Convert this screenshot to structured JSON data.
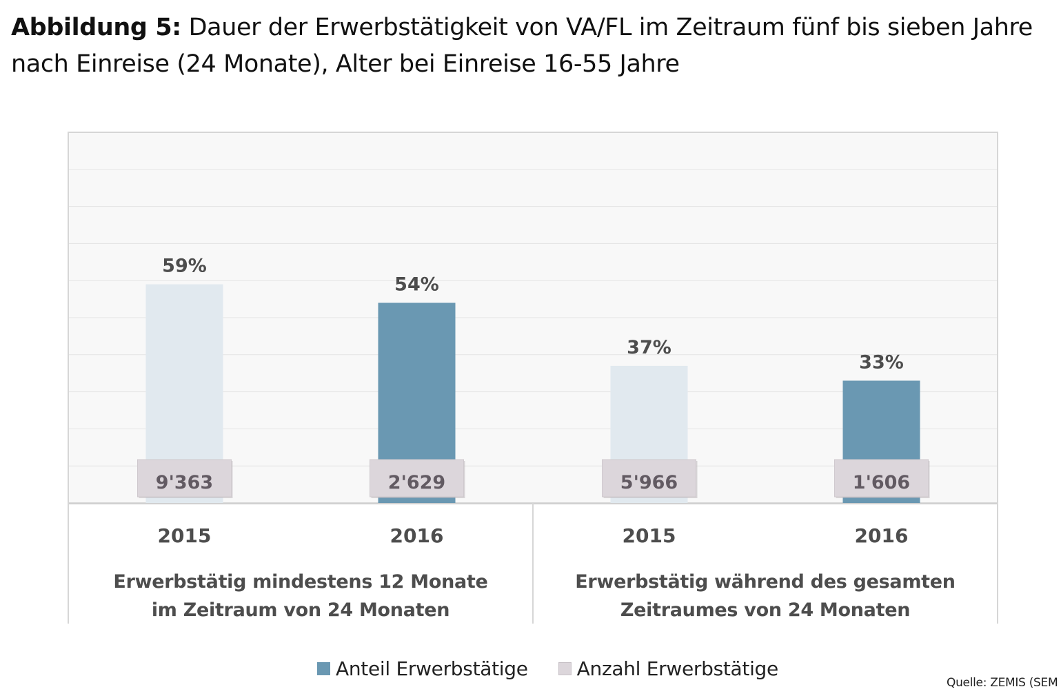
{
  "title": {
    "prefix": "Abbildung 5:",
    "text": " Dauer der Erwerbstätigkeit von VA/FL im Zeitraum fünf bis sieben Jahre nach Einreise (24 Monate), Alter bei Einreise 16-55 Jahre"
  },
  "colors": {
    "anteil": "#6a98b2",
    "anzahl_bar": "#e1e9ef",
    "anzahl_swatch": "#dcd6db",
    "count_box": "#dcd6db",
    "grid": "#e4e4e4",
    "plot_bg": "#f8f8f8",
    "label": "#4d4d4d"
  },
  "chart_data": {
    "type": "bar",
    "ylim": [
      0,
      100
    ],
    "grid": true,
    "groups": [
      {
        "label_lines": [
          "Erwerbstätig mindestens 12 Monate",
          "im Zeitraum von 24 Monaten"
        ],
        "bars": [
          {
            "year": "2015",
            "value": 59,
            "value_label": "59%",
            "count_label": "9'363",
            "series": "anzahl"
          },
          {
            "year": "2016",
            "value": 54,
            "value_label": "54%",
            "count_label": "2'629",
            "series": "anteil"
          }
        ]
      },
      {
        "label_lines": [
          "Erwerbstätig während des gesamten",
          "Zeitraumes von 24 Monaten"
        ],
        "bars": [
          {
            "year": "2015",
            "value": 37,
            "value_label": "37%",
            "count_label": "5'966",
            "series": "anzahl"
          },
          {
            "year": "2016",
            "value": 33,
            "value_label": "33%",
            "count_label": "1'606",
            "series": "anteil"
          }
        ]
      }
    ],
    "legend": [
      {
        "key": "anteil",
        "label": "Anteil Erwerbstätige"
      },
      {
        "key": "anzahl",
        "label": "Anzahl Erwerbstätige"
      }
    ]
  },
  "source": "Quelle: ZEMIS (SEM"
}
